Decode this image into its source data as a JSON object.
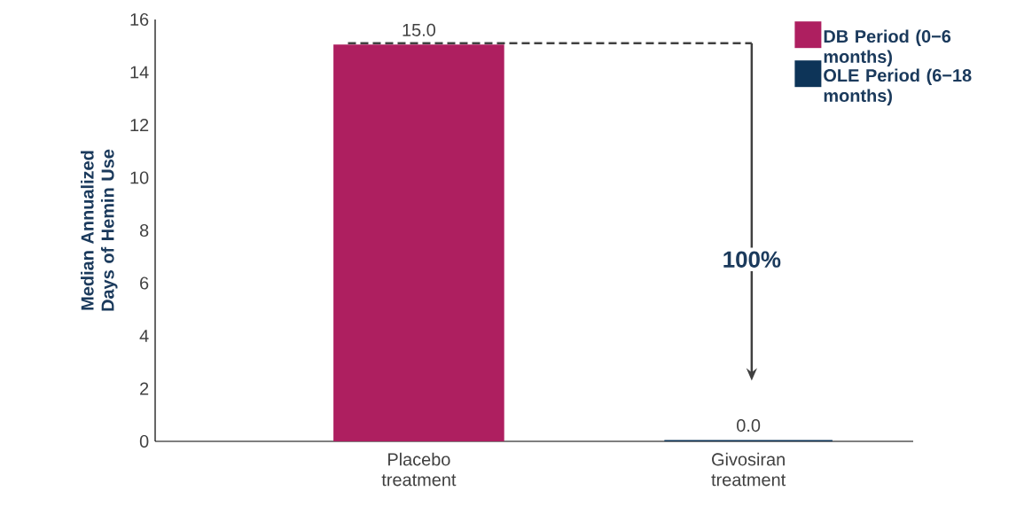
{
  "chart_data": {
    "type": "bar",
    "ylabel": "Median Annualized Days of Hemin Use",
    "categories": [
      "Placebo treatment",
      "Givosiran treatment"
    ],
    "series": [
      {
        "name": "DB Period (0−6 months)",
        "color": "#ae1f60",
        "values": [
          15.0,
          null
        ],
        "value_labels": [
          "15.0",
          null
        ]
      },
      {
        "name": "OLE Period (6−18 months)",
        "color": "#0d3458",
        "values": [
          null,
          0.0
        ],
        "value_labels": [
          null,
          "0.0"
        ]
      }
    ],
    "ylim": [
      0,
      16
    ],
    "yticks": [
      0,
      2,
      4,
      6,
      8,
      10,
      12,
      14,
      16
    ],
    "annotations": [
      "100%"
    ],
    "ref_lines": [
      {
        "axis": "y",
        "value": 15.1,
        "color": "#404040",
        "line_style": "dashed"
      }
    ],
    "legend": "top right"
  }
}
